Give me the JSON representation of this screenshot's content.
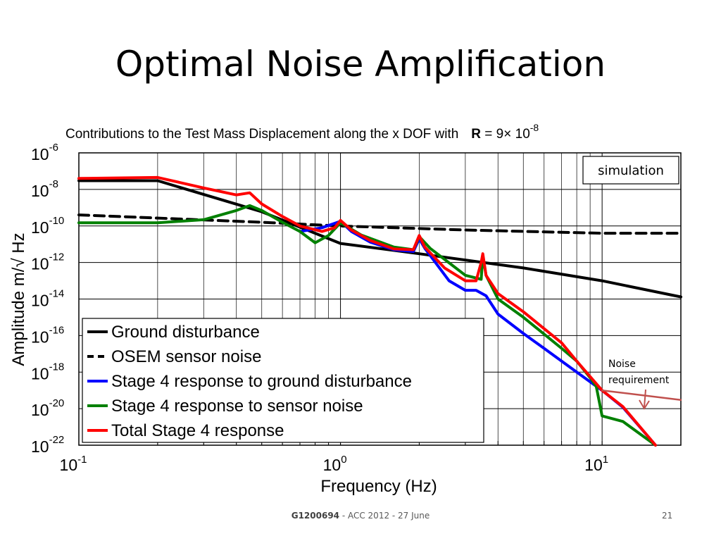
{
  "slide": {
    "title": "Optimal Noise Amplification",
    "footer_id": "G1200694",
    "footer_rest": " - ACC 2012 - 27 June",
    "page_number": "21"
  },
  "chart_data": {
    "type": "line",
    "title_prefix": "Contributions to the Test Mass Displacement along the x DOF with",
    "title_symbol": "R",
    "title_value": " = 9× 10",
    "title_value_exp": "-8",
    "xlabel": "Frequency (Hz)",
    "ylabel": "Amplitude m/√ Hz",
    "x_scale": "log",
    "y_scale": "log",
    "xlim": [
      0.1,
      20
    ],
    "ylim": [
      1e-22,
      1e-06
    ],
    "grid": true,
    "x_ticks": [
      {
        "value": 0.1,
        "base": "10",
        "exp": "-1"
      },
      {
        "value": 1,
        "base": "10",
        "exp": "0"
      },
      {
        "value": 10,
        "base": "10",
        "exp": "1"
      }
    ],
    "y_ticks": [
      {
        "value": 1e-06,
        "base": "10",
        "exp": "-6"
      },
      {
        "value": 1e-08,
        "base": "10",
        "exp": "-8"
      },
      {
        "value": 1e-10,
        "base": "10",
        "exp": "-10"
      },
      {
        "value": 1e-12,
        "base": "10",
        "exp": "-12"
      },
      {
        "value": 1e-14,
        "base": "10",
        "exp": "-14"
      },
      {
        "value": 1e-16,
        "base": "10",
        "exp": "-16"
      },
      {
        "value": 1e-18,
        "base": "10",
        "exp": "-18"
      },
      {
        "value": 1e-20,
        "base": "10",
        "exp": "-20"
      },
      {
        "value": 1e-22,
        "base": "10",
        "exp": "-22"
      }
    ],
    "legend_position": "bottom-left",
    "series": [
      {
        "name": "Ground disturbance",
        "color": "#000000",
        "dash": "solid",
        "points": [
          [
            0.1,
            3e-08
          ],
          [
            0.2,
            3e-08
          ],
          [
            0.5,
            6e-10
          ],
          [
            1,
            1.1e-11
          ],
          [
            2,
            3e-12
          ],
          [
            5,
            5e-13
          ],
          [
            10,
            1e-13
          ],
          [
            20,
            1.3e-14
          ]
        ]
      },
      {
        "name": "OSEM sensor noise",
        "color": "#000000",
        "dash": "dashed",
        "points": [
          [
            0.1,
            4e-10
          ],
          [
            0.5,
            1.6e-10
          ],
          [
            1,
            1e-10
          ],
          [
            3,
            6e-11
          ],
          [
            10,
            4e-11
          ],
          [
            20,
            4e-11
          ]
        ]
      },
      {
        "name": "Stage 4 response to ground disturbance",
        "color": "#0000ff",
        "dash": "solid",
        "points": [
          [
            0.7,
            5e-11
          ],
          [
            0.85,
            8e-11
          ],
          [
            1,
            1.8e-10
          ],
          [
            1.1,
            5e-11
          ],
          [
            1.3,
            1.3e-11
          ],
          [
            1.6,
            5e-12
          ],
          [
            1.9,
            4e-12
          ],
          [
            2,
            2e-11
          ],
          [
            2.1,
            6e-12
          ],
          [
            2.6,
            1e-13
          ],
          [
            3,
            3e-14
          ],
          [
            3.3,
            3e-14
          ],
          [
            3.6,
            1.5e-14
          ],
          [
            4,
            1.5e-15
          ],
          [
            5,
            1.3e-16
          ],
          [
            6,
            2e-17
          ],
          [
            8,
            1e-18
          ],
          [
            10,
            1e-19
          ],
          [
            12,
            1.2e-20
          ],
          [
            16,
            1e-22
          ]
        ]
      },
      {
        "name": "Stage 4 response to sensor noise",
        "color": "#008000",
        "dash": "solid",
        "points": [
          [
            0.1,
            1.5e-10
          ],
          [
            0.2,
            1.5e-10
          ],
          [
            0.3,
            2.2e-10
          ],
          [
            0.4,
            7e-10
          ],
          [
            0.45,
            1.3e-09
          ],
          [
            0.5,
            7e-10
          ],
          [
            0.6,
            1.6e-10
          ],
          [
            0.7,
            5e-11
          ],
          [
            0.8,
            1.2e-11
          ],
          [
            0.9,
            3e-11
          ],
          [
            1,
            1.5e-10
          ],
          [
            1.2,
            3.2e-11
          ],
          [
            1.6,
            7e-12
          ],
          [
            1.9,
            5e-12
          ],
          [
            2,
            2.6e-11
          ],
          [
            2.2,
            6e-12
          ],
          [
            3,
            2e-13
          ],
          [
            3.45,
            1.2e-13
          ],
          [
            3.5,
            2.5e-12
          ],
          [
            3.6,
            2e-13
          ],
          [
            4,
            1e-14
          ],
          [
            5,
            1e-15
          ],
          [
            7,
            2e-17
          ],
          [
            8,
            4e-18
          ],
          [
            9,
            5e-19
          ],
          [
            9.5,
            1.6e-19
          ],
          [
            10,
            4e-21
          ],
          [
            12,
            2e-21
          ],
          [
            16,
            1e-22
          ]
        ]
      },
      {
        "name": "Total Stage 4 response",
        "color": "#ff0000",
        "dash": "solid",
        "points": [
          [
            0.1,
            4e-08
          ],
          [
            0.2,
            4.5e-08
          ],
          [
            0.3,
            1.2e-08
          ],
          [
            0.4,
            5e-09
          ],
          [
            0.45,
            6.5e-09
          ],
          [
            0.5,
            1.6e-09
          ],
          [
            0.6,
            3.3e-10
          ],
          [
            0.7,
            1e-10
          ],
          [
            0.85,
            5e-11
          ],
          [
            0.95,
            8e-11
          ],
          [
            1,
            2e-10
          ],
          [
            1.1,
            6e-11
          ],
          [
            1.3,
            1.6e-11
          ],
          [
            1.6,
            5.5e-12
          ],
          [
            1.9,
            5e-12
          ],
          [
            2,
            3e-11
          ],
          [
            2.1,
            7e-12
          ],
          [
            2.5,
            5e-13
          ],
          [
            3,
            1e-13
          ],
          [
            3.3,
            1e-13
          ],
          [
            3.45,
            1e-12
          ],
          [
            3.5,
            3e-12
          ],
          [
            3.6,
            2e-13
          ],
          [
            4,
            2e-14
          ],
          [
            5,
            2e-15
          ],
          [
            7,
            4e-17
          ],
          [
            8,
            4e-18
          ],
          [
            10,
            1e-19
          ],
          [
            12,
            1.3e-20
          ],
          [
            16,
            1e-22
          ]
        ]
      },
      {
        "name": "",
        "color": "#c0504d",
        "dash": "solid",
        "points": [
          [
            10,
            1e-19
          ],
          [
            20,
            3e-20
          ]
        ]
      }
    ],
    "annotations": {
      "noise_line1": "Noise",
      "noise_line2": "requirement",
      "simulation": "simulation"
    }
  }
}
